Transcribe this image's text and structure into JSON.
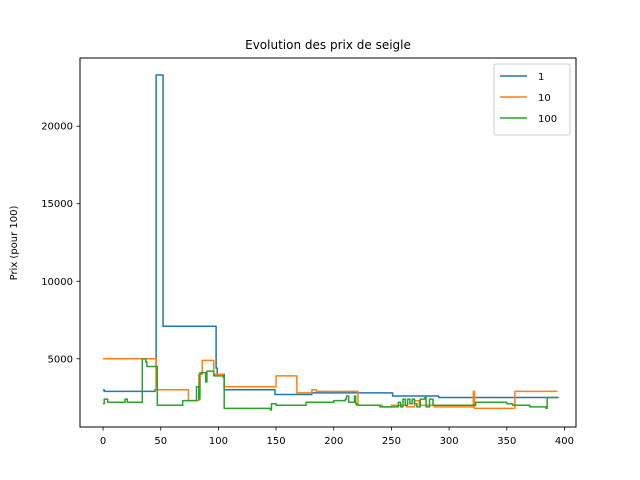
{
  "chart_data": {
    "type": "line",
    "title": "Evolution des prix de seigle",
    "xlabel": "",
    "ylabel": "Prix (pour 100)",
    "xlim": [
      -20,
      410
    ],
    "ylim": [
      600,
      24400
    ],
    "xticks": [
      0,
      50,
      100,
      150,
      200,
      250,
      300,
      350,
      400
    ],
    "yticks": [
      5000,
      10000,
      15000,
      20000
    ],
    "grid": false,
    "legend_position": "top-right",
    "series": [
      {
        "name": "1",
        "color": "#1f77b4",
        "step": true,
        "points": [
          [
            0,
            3000
          ],
          [
            1,
            2900
          ],
          [
            45,
            3000
          ],
          [
            46,
            23300
          ],
          [
            51,
            23300
          ],
          [
            52,
            7100
          ],
          [
            97,
            7100
          ],
          [
            98,
            4400
          ],
          [
            99,
            4000
          ],
          [
            105,
            3000
          ],
          [
            148,
            3000
          ],
          [
            149,
            2700
          ],
          [
            180,
            2700
          ],
          [
            181,
            2800
          ],
          [
            250,
            2800
          ],
          [
            251,
            2600
          ],
          [
            290,
            2600
          ],
          [
            291,
            2500
          ],
          [
            385,
            2500
          ],
          [
            395,
            2500
          ]
        ]
      },
      {
        "name": "10",
        "color": "#ff7f0e",
        "step": true,
        "points": [
          [
            0,
            5000
          ],
          [
            45,
            5000
          ],
          [
            46,
            3000
          ],
          [
            73,
            3000
          ],
          [
            74,
            2300
          ],
          [
            82,
            2300
          ],
          [
            83,
            4000
          ],
          [
            86,
            4900
          ],
          [
            95,
            4900
          ],
          [
            96,
            4000
          ],
          [
            104,
            3800
          ],
          [
            105,
            3200
          ],
          [
            149,
            3200
          ],
          [
            150,
            3900
          ],
          [
            167,
            3900
          ],
          [
            168,
            2800
          ],
          [
            180,
            2800
          ],
          [
            181,
            3000
          ],
          [
            185,
            2900
          ],
          [
            220,
            2900
          ],
          [
            221,
            2000
          ],
          [
            241,
            2000
          ],
          [
            242,
            1900
          ],
          [
            250,
            2000
          ],
          [
            262,
            2000
          ],
          [
            263,
            1900
          ],
          [
            270,
            2300
          ],
          [
            274,
            2000
          ],
          [
            287,
            1900
          ],
          [
            320,
            1900
          ],
          [
            321,
            2900
          ],
          [
            322,
            1800
          ],
          [
            340,
            1800
          ],
          [
            350,
            1800
          ],
          [
            357,
            2900
          ],
          [
            394,
            2900
          ]
        ]
      },
      {
        "name": "100",
        "color": "#2ca02c",
        "step": true,
        "points": [
          [
            0,
            2100
          ],
          [
            1,
            2400
          ],
          [
            3,
            2400
          ],
          [
            4,
            2200
          ],
          [
            18,
            2200
          ],
          [
            19,
            2400
          ],
          [
            21,
            2200
          ],
          [
            33,
            2200
          ],
          [
            34,
            5000
          ],
          [
            37,
            4800
          ],
          [
            38,
            4500
          ],
          [
            46,
            4500
          ],
          [
            47,
            2000
          ],
          [
            68,
            2000
          ],
          [
            69,
            2300
          ],
          [
            80,
            2300
          ],
          [
            81,
            3200
          ],
          [
            83,
            2400
          ],
          [
            84,
            4100
          ],
          [
            88,
            4100
          ],
          [
            89,
            3500
          ],
          [
            90,
            4200
          ],
          [
            95,
            4200
          ],
          [
            96,
            3900
          ],
          [
            104,
            3900
          ],
          [
            105,
            1800
          ],
          [
            120,
            1800
          ],
          [
            130,
            1800
          ],
          [
            145,
            1700
          ],
          [
            146,
            2100
          ],
          [
            150,
            2000
          ],
          [
            175,
            2000
          ],
          [
            176,
            2200
          ],
          [
            190,
            2200
          ],
          [
            200,
            2300
          ],
          [
            210,
            2400
          ],
          [
            211,
            2600
          ],
          [
            213,
            2200
          ],
          [
            218,
            2600
          ],
          [
            219,
            2100
          ],
          [
            220,
            2000
          ],
          [
            235,
            2000
          ],
          [
            240,
            1900
          ],
          [
            255,
            1900
          ],
          [
            256,
            2200
          ],
          [
            258,
            1900
          ],
          [
            260,
            2400
          ],
          [
            262,
            2000
          ],
          [
            264,
            2400
          ],
          [
            266,
            2100
          ],
          [
            268,
            2400
          ],
          [
            270,
            2100
          ],
          [
            272,
            1900
          ],
          [
            275,
            2400
          ],
          [
            278,
            2400
          ],
          [
            279,
            2500
          ],
          [
            280,
            1900
          ],
          [
            283,
            2400
          ],
          [
            286,
            2000
          ],
          [
            322,
            2000
          ],
          [
            323,
            2200
          ],
          [
            350,
            2100
          ],
          [
            355,
            2000
          ],
          [
            370,
            1900
          ],
          [
            384,
            1800
          ],
          [
            385,
            2500
          ],
          [
            394,
            2500
          ]
        ]
      }
    ]
  }
}
